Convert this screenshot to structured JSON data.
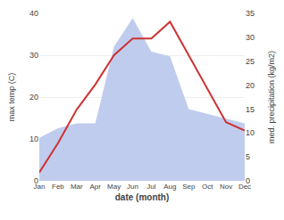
{
  "chart_data": {
    "type": "line",
    "xlabel": "date (month)",
    "ylabel": "max temp (C)",
    "y2label": "med. precipitation (kg/m2)",
    "categories": [
      "Jan",
      "Feb",
      "Mar",
      "Apr",
      "May",
      "Jun",
      "Jul",
      "Aug",
      "Sep",
      "Oct",
      "Nov",
      "Dec"
    ],
    "series": [
      {
        "type": "area",
        "axis": "y2",
        "color": "#c0ccee",
        "values": [
          9,
          11,
          12,
          12,
          28,
          34,
          27,
          26,
          15,
          14,
          13,
          12
        ]
      },
      {
        "type": "line",
        "color": "#cc3333",
        "values": [
          2,
          9,
          17,
          23,
          30,
          34,
          34,
          38,
          30,
          22,
          14,
          12
        ]
      }
    ],
    "ylim": [
      0,
      40
    ],
    "yticks": [
      0,
      10,
      20,
      30,
      40
    ],
    "y2lim": [
      0,
      35
    ],
    "y2ticks": [
      0,
      5,
      10,
      15,
      20,
      25,
      30,
      35
    ],
    "grid": true
  }
}
